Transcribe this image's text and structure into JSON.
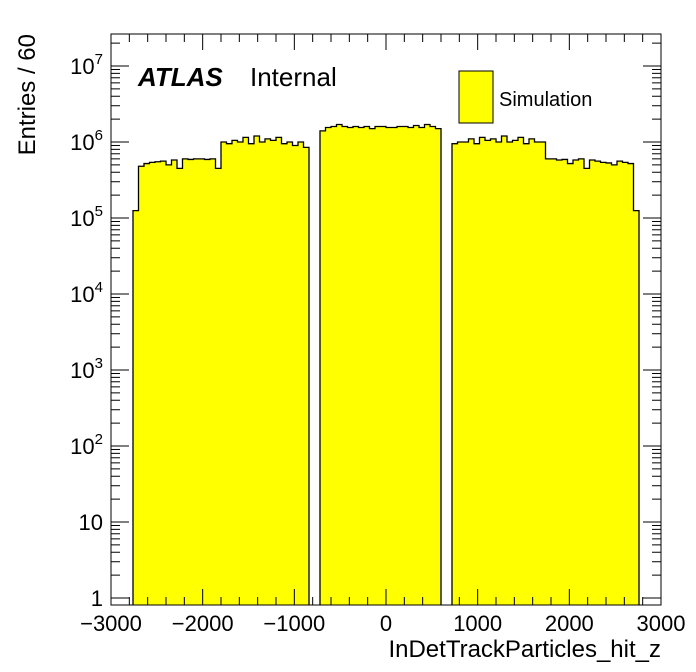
{
  "chart_data": {
    "type": "bar",
    "histogram": true,
    "xlabel": "InDetTrackParticles_hit_z",
    "ylabel": "Entries / 60",
    "xlim": [
      -3000,
      3000
    ],
    "ylim": [
      0.8,
      25000000
    ],
    "yscale": "log",
    "xticks": [
      "−3000",
      "−2000",
      "−1000",
      "0",
      "1000",
      "2000",
      "3000"
    ],
    "bin_width": 60,
    "series": [
      {
        "name": "Simulation",
        "color": "#ffff00",
        "edge_color": "#000000",
        "bin_low_edges": [
          -2760,
          -2700,
          -2640,
          -2580,
          -2520,
          -2460,
          -2400,
          -2340,
          -2280,
          -2220,
          -2160,
          -2100,
          -2040,
          -1980,
          -1920,
          -1860,
          -1800,
          -1740,
          -1680,
          -1620,
          -1560,
          -1500,
          -1440,
          -1380,
          -1320,
          -1260,
          -1200,
          -1140,
          -1080,
          -1020,
          -960,
          -900,
          -840,
          -780,
          -720,
          -660,
          -600,
          -540,
          -480,
          -420,
          -360,
          -300,
          -240,
          -180,
          -120,
          -60,
          0,
          60,
          120,
          180,
          240,
          300,
          360,
          420,
          480,
          540,
          600,
          660,
          720,
          780,
          840,
          900,
          960,
          1020,
          1080,
          1140,
          1200,
          1260,
          1320,
          1380,
          1440,
          1500,
          1560,
          1620,
          1680,
          1740,
          1800,
          1860,
          1920,
          1980,
          2040,
          2100,
          2160,
          2220,
          2280,
          2340,
          2400,
          2460,
          2520,
          2580,
          2640,
          2700
        ],
        "values": [
          125000,
          480000,
          520000,
          540000,
          550000,
          560000,
          500000,
          580000,
          450000,
          600000,
          590000,
          600000,
          600000,
          590000,
          600000,
          450000,
          1000000,
          950000,
          1050000,
          1000000,
          1150000,
          950000,
          1200000,
          1000000,
          1100000,
          1050000,
          1150000,
          950000,
          1000000,
          900000,
          1000000,
          850000,
          0,
          0,
          1400000,
          1550000,
          1600000,
          1700000,
          1600000,
          1550000,
          1600000,
          1550000,
          1600000,
          1500000,
          1600000,
          1600000,
          1550000,
          1550000,
          1600000,
          1600000,
          1550000,
          1650000,
          1550000,
          1700000,
          1600000,
          1500000,
          0,
          0,
          950000,
          1000000,
          1000000,
          1100000,
          950000,
          1150000,
          1050000,
          1100000,
          1000000,
          1200000,
          1000000,
          1050000,
          1150000,
          950000,
          1100000,
          1000000,
          1000000,
          600000,
          600000,
          580000,
          590000,
          520000,
          580000,
          600000,
          450000,
          580000,
          560000,
          540000,
          530000,
          500000,
          560000,
          540000,
          520000,
          125000
        ]
      }
    ]
  },
  "ytick_labels": [
    {
      "value": 1,
      "base": "1",
      "exp": ""
    },
    {
      "value": 10,
      "base": "10",
      "exp": ""
    },
    {
      "value": 100,
      "base": "10",
      "exp": "2"
    },
    {
      "value": 1000,
      "base": "10",
      "exp": "3"
    },
    {
      "value": 10000,
      "base": "10",
      "exp": "4"
    },
    {
      "value": 100000,
      "base": "10",
      "exp": "5"
    },
    {
      "value": 1000000,
      "base": "10",
      "exp": "6"
    },
    {
      "value": 10000000,
      "base": "10",
      "exp": "7"
    }
  ],
  "annotations": {
    "atlas": "ATLAS",
    "internal": "Internal"
  },
  "legend": {
    "label": "Simulation",
    "placement": "top-right"
  }
}
